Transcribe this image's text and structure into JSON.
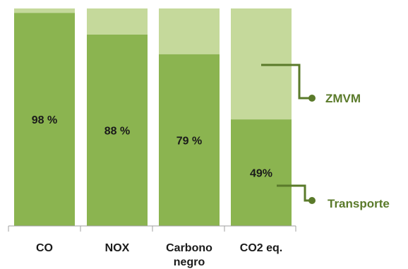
{
  "chart_data": {
    "type": "bar",
    "stacked": true,
    "percent_stacked": true,
    "categories": [
      "CO",
      "NOX",
      "Carbono negro",
      "CO2 eq."
    ],
    "series": [
      {
        "name": "Transporte",
        "values": [
          98,
          88,
          79,
          49
        ],
        "color": "#8bb450"
      },
      {
        "name": "ZMVM",
        "values": [
          2,
          12,
          21,
          51
        ],
        "color": "#c5d99b"
      }
    ],
    "data_labels": [
      "98 %",
      "88 %",
      "79 %",
      "49%"
    ],
    "ylim": [
      0,
      100
    ],
    "grid": false,
    "legend_placement": "right",
    "legend_color": "#5a7a2a",
    "title": "",
    "xlabel": "",
    "ylabel": ""
  }
}
